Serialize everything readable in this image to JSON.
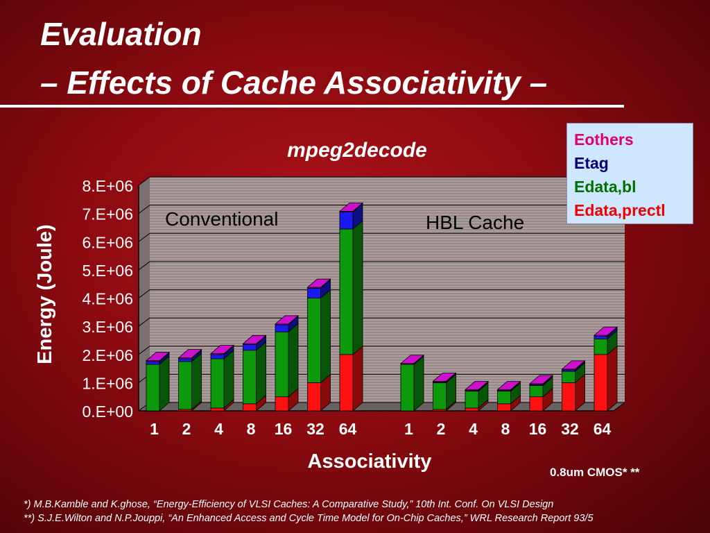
{
  "slide": {
    "title_line1": "Evaluation",
    "title_line2": "– Effects of Cache Associativity –",
    "footnote1": "*) M.B.Kamble and K.ghose, “Energy-Efficiency of VLSI Caches: A Comparative Study,” 10th Int. Conf. On VLSI Design",
    "footnote2": "**) S.J.E.Wilton and N.P.Jouppi, “An Enhanced Access and Cycle Time Model for On-Chip Caches,” WRL Research Report 93/5",
    "tech_note": "0.8um CMOS* **"
  },
  "chart_data": {
    "type": "bar",
    "stacked": true,
    "title": "mpeg2decode",
    "xlabel": "Associativity",
    "ylabel": "Energy (Joule)",
    "ylim": [
      0,
      8000000
    ],
    "yticks": [
      {
        "value": 0,
        "label": "0.E+00"
      },
      {
        "value": 1000000,
        "label": "1.E+06"
      },
      {
        "value": 2000000,
        "label": "2.E+06"
      },
      {
        "value": 3000000,
        "label": "3.E+06"
      },
      {
        "value": 4000000,
        "label": "4.E+06"
      },
      {
        "value": 5000000,
        "label": "5.E+06"
      },
      {
        "value": 6000000,
        "label": "6.E+06"
      },
      {
        "value": 7000000,
        "label": "7.E+06"
      },
      {
        "value": 8000000,
        "label": "8.E+06"
      }
    ],
    "legend_position": "top-right",
    "grid": true,
    "series_colors": {
      "Edata,prectl": "#ff1111",
      "Edata,bl": "#0c9a0c",
      "Etag": "#1a1aee",
      "Eothers": "#cc11cc"
    },
    "legend": [
      {
        "name": "Eothers",
        "color": "#e0006a"
      },
      {
        "name": "Etag",
        "color": "#00006e"
      },
      {
        "name": "Edata,bl",
        "color": "#007000"
      },
      {
        "name": "Edata,prectl",
        "color": "#ee0000"
      }
    ],
    "groups": [
      {
        "label": "Conventional",
        "categories": [
          "1",
          "2",
          "4",
          "8",
          "16",
          "32",
          "64"
        ],
        "series": [
          {
            "name": "Edata,prectl",
            "values": [
              0,
              50000,
              100000,
              250000,
              500000,
              1000000,
              2000000
            ]
          },
          {
            "name": "Edata,bl",
            "values": [
              1650000,
              1700000,
              1750000,
              1900000,
              2300000,
              3000000,
              4450000
            ]
          },
          {
            "name": "Etag",
            "values": [
              100000,
              100000,
              150000,
              200000,
              250000,
              350000,
              600000
            ]
          },
          {
            "name": "Eothers",
            "values": [
              30000,
              30000,
              30000,
              30000,
              30000,
              30000,
              30000
            ]
          }
        ]
      },
      {
        "label": "HBL Cache",
        "categories": [
          "1",
          "2",
          "4",
          "8",
          "16",
          "32",
          "64"
        ],
        "series": [
          {
            "name": "Edata,prectl",
            "values": [
              0,
              50000,
              100000,
              250000,
              500000,
              1000000,
              2000000
            ]
          },
          {
            "name": "Edata,bl",
            "values": [
              1650000,
              950000,
              600000,
              450000,
              400000,
              400000,
              550000
            ]
          },
          {
            "name": "Etag",
            "values": [
              0,
              20000,
              20000,
              20000,
              30000,
              50000,
              100000
            ]
          },
          {
            "name": "Eothers",
            "values": [
              30000,
              30000,
              30000,
              30000,
              30000,
              30000,
              30000
            ]
          }
        ]
      }
    ]
  }
}
